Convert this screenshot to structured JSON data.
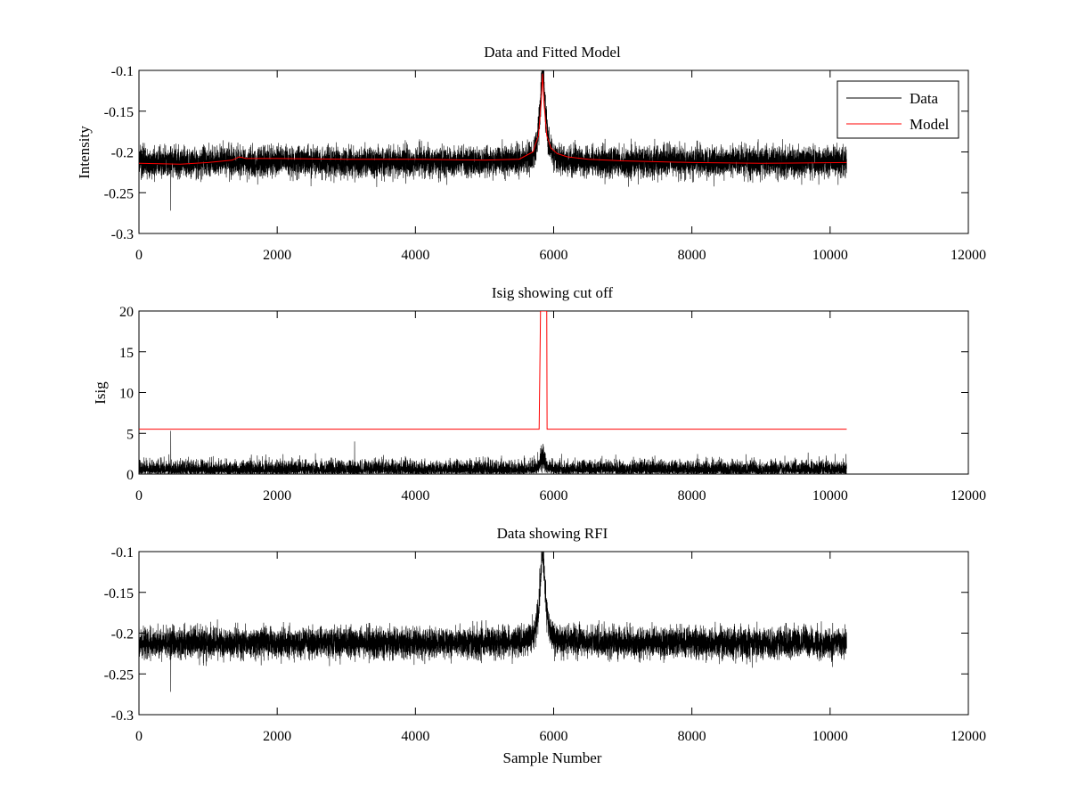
{
  "figure": {
    "background": "#ffffff"
  },
  "chart_data": [
    {
      "type": "line",
      "title": "Data and Fitted Model",
      "xlabel": "",
      "ylabel": "Intensity",
      "xlim": [
        0,
        12000
      ],
      "ylim": [
        -0.3,
        -0.1
      ],
      "xticks": [
        0,
        2000,
        4000,
        6000,
        8000,
        10000,
        12000
      ],
      "yticks": [
        -0.3,
        -0.25,
        -0.2,
        -0.15,
        -0.1
      ],
      "legend": {
        "position": "top-right",
        "entries": [
          "Data",
          "Model"
        ]
      },
      "grid": false,
      "series": [
        {
          "name": "Data",
          "color": "#000000",
          "kind": "noise",
          "n_samples": 10240,
          "baseline": -0.212,
          "noise_amplitude": 0.013,
          "peak": {
            "center": 5840,
            "height": 0.112,
            "width": 45
          },
          "notable_dips": [
            {
              "x": 460,
              "y": -0.272
            }
          ],
          "y_range": [
            -0.272,
            -0.1
          ]
        },
        {
          "name": "Model",
          "color": "#ff0000",
          "kind": "smooth",
          "x": [
            0,
            600,
            1000,
            1350,
            1450,
            1550,
            2000,
            3000,
            4000,
            5000,
            5500,
            5700,
            5780,
            5820,
            5840,
            5860,
            5900,
            5960,
            6050,
            6200,
            6500,
            7000,
            8000,
            9000,
            10240
          ],
          "y": [
            -0.214,
            -0.215,
            -0.213,
            -0.21,
            -0.206,
            -0.208,
            -0.208,
            -0.209,
            -0.209,
            -0.21,
            -0.209,
            -0.2,
            -0.18,
            -0.14,
            -0.104,
            -0.14,
            -0.18,
            -0.195,
            -0.202,
            -0.206,
            -0.209,
            -0.211,
            -0.213,
            -0.214,
            -0.213
          ]
        }
      ]
    },
    {
      "type": "line",
      "title": "Isig showing cut off",
      "xlabel": "",
      "ylabel": "Isig",
      "xlim": [
        0,
        12000
      ],
      "ylim": [
        0,
        20
      ],
      "xticks": [
        0,
        2000,
        4000,
        6000,
        8000,
        10000,
        12000
      ],
      "yticks": [
        0,
        5,
        10,
        15,
        20
      ],
      "grid": false,
      "series": [
        {
          "name": "Isig",
          "color": "#000000",
          "kind": "abs-noise",
          "n_samples": 10240,
          "noise_amplitude": 1.0,
          "peak": {
            "center": 5840,
            "height": 3.2,
            "width": 30
          },
          "notable_spikes": [
            {
              "x": 460,
              "y": 5.3
            },
            {
              "x": 3120,
              "y": 4.0
            }
          ]
        },
        {
          "name": "Cut off",
          "color": "#ff0000",
          "kind": "step",
          "x": [
            0,
            5790,
            5800,
            5810,
            5820,
            5900,
            5905,
            5920,
            10240
          ],
          "y": [
            5.5,
            5.5,
            12.5,
            20,
            20,
            20,
            5.5,
            5.5,
            5.5
          ]
        }
      ]
    },
    {
      "type": "line",
      "title": "Data showing RFI",
      "xlabel": "Sample Number",
      "ylabel": "",
      "xlim": [
        0,
        12000
      ],
      "ylim": [
        -0.3,
        -0.1
      ],
      "xticks": [
        0,
        2000,
        4000,
        6000,
        8000,
        10000,
        12000
      ],
      "yticks": [
        -0.3,
        -0.25,
        -0.2,
        -0.15,
        -0.1
      ],
      "grid": false,
      "series": [
        {
          "name": "Data",
          "color": "#000000",
          "kind": "noise",
          "n_samples": 10240,
          "baseline": -0.212,
          "noise_amplitude": 0.013,
          "peak": {
            "center": 5840,
            "height": 0.112,
            "width": 45
          },
          "notable_dips": [
            {
              "x": 460,
              "y": -0.272
            }
          ],
          "y_range": [
            -0.272,
            -0.1
          ]
        }
      ]
    }
  ]
}
